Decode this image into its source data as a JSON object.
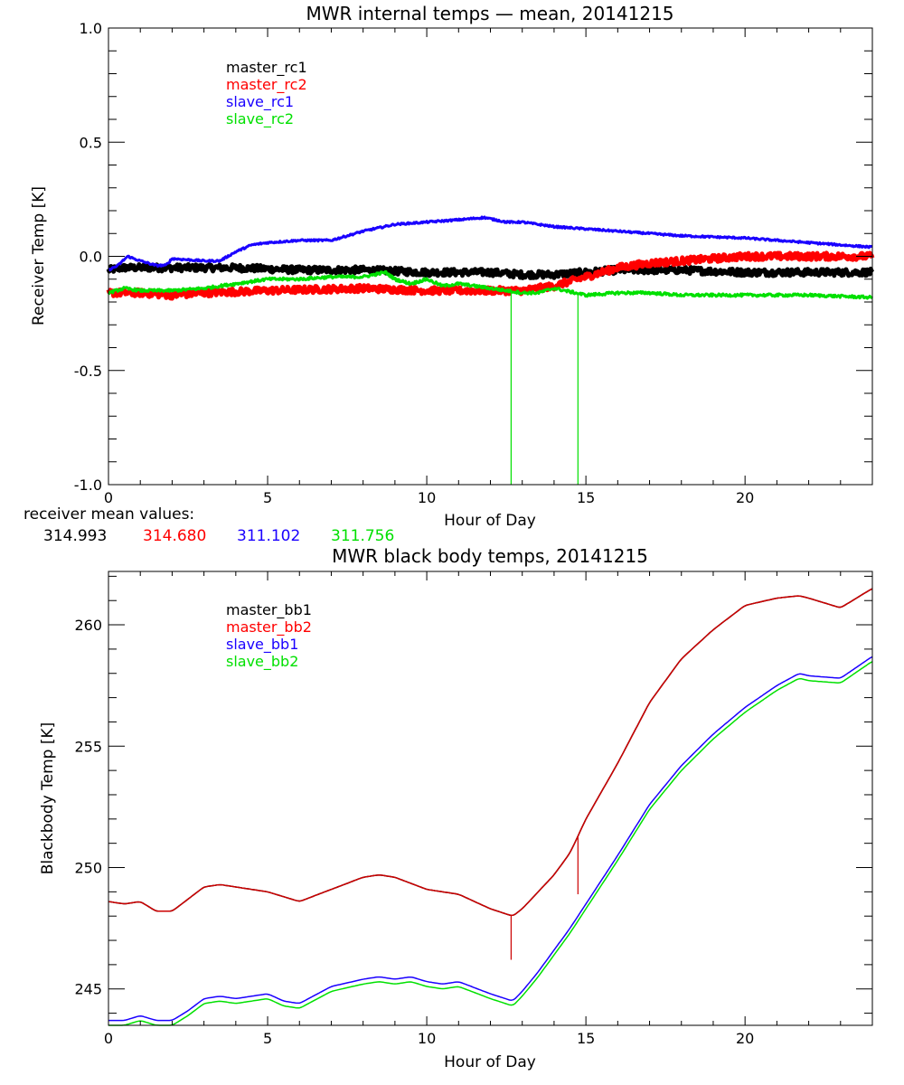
{
  "colors": {
    "black": "#000000",
    "red": "#ff0000",
    "blue": "#1a00ff",
    "green": "#00e000",
    "darkred": "#cc0000"
  },
  "chart_data": [
    {
      "type": "line",
      "title": "MWR internal temps — mean, 20141215",
      "xlabel": "Hour of Day",
      "ylabel": "Receiver Temp [K]",
      "xlim": [
        0,
        24
      ],
      "ylim": [
        -1.0,
        1.0
      ],
      "xticks": [
        0,
        5,
        10,
        15,
        20
      ],
      "xtick_labels": [
        "0",
        "5",
        "10",
        "15",
        "20"
      ],
      "yticks": [
        -1.0,
        -0.5,
        0.0,
        0.5,
        1.0
      ],
      "ytick_labels": [
        "-1.0",
        "-0.5",
        "0.0",
        "0.5",
        "1.0"
      ],
      "legend": [
        "master_rc1",
        "master_rc2",
        "slave_rc1",
        "slave_rc2"
      ],
      "legend_colors": [
        "black",
        "red",
        "blue",
        "green"
      ],
      "series": [
        {
          "name": "master_rc1",
          "color": "black",
          "noise": 0.015,
          "x": [
            0,
            0.5,
            2,
            4,
            6,
            8,
            10,
            12,
            13,
            14,
            15,
            16,
            18,
            20,
            22,
            24
          ],
          "y": [
            -0.06,
            -0.05,
            -0.05,
            -0.05,
            -0.06,
            -0.06,
            -0.07,
            -0.07,
            -0.08,
            -0.08,
            -0.07,
            -0.06,
            -0.06,
            -0.07,
            -0.07,
            -0.07
          ]
        },
        {
          "name": "master_rc2",
          "color": "red",
          "noise": 0.015,
          "x": [
            0,
            1,
            2,
            3,
            5,
            8,
            10,
            12,
            13,
            14,
            15,
            16,
            17,
            18,
            20,
            22,
            24
          ],
          "y": [
            -0.16,
            -0.16,
            -0.17,
            -0.16,
            -0.15,
            -0.14,
            -0.15,
            -0.15,
            -0.15,
            -0.13,
            -0.09,
            -0.05,
            -0.03,
            -0.02,
            0.0,
            0.0,
            0.0
          ]
        },
        {
          "name": "slave_rc1",
          "color": "blue",
          "noise": 0.004,
          "x": [
            0,
            0.3,
            0.6,
            1,
            1.5,
            1.8,
            2,
            3,
            3.5,
            4,
            4.5,
            5,
            6,
            7,
            7.5,
            8,
            9,
            10,
            11,
            11.8,
            12.5,
            13,
            14,
            15,
            16,
            17,
            18,
            20,
            22,
            24
          ],
          "y": [
            -0.06,
            -0.04,
            0.0,
            -0.02,
            -0.04,
            -0.04,
            -0.01,
            -0.02,
            -0.02,
            0.02,
            0.05,
            0.06,
            0.07,
            0.07,
            0.09,
            0.11,
            0.14,
            0.15,
            0.16,
            0.17,
            0.15,
            0.15,
            0.13,
            0.12,
            0.11,
            0.1,
            0.09,
            0.08,
            0.06,
            0.04
          ],
          "spikes": [
            {
              "x": 12.7,
              "to": 0.14
            },
            {
              "x": 14.8,
              "to": 0.12
            }
          ]
        },
        {
          "name": "slave_rc2",
          "color": "green",
          "noise": 0.006,
          "x": [
            0,
            0.5,
            1,
            2,
            3,
            4,
            5,
            6,
            7,
            8,
            8.7,
            9,
            9.5,
            10,
            10.5,
            11,
            12,
            12.5,
            13,
            13.5,
            14,
            15,
            16,
            17,
            18,
            20,
            22,
            24
          ],
          "y": [
            -0.16,
            -0.14,
            -0.15,
            -0.15,
            -0.14,
            -0.12,
            -0.1,
            -0.1,
            -0.09,
            -0.09,
            -0.07,
            -0.1,
            -0.12,
            -0.1,
            -0.13,
            -0.12,
            -0.14,
            -0.15,
            -0.16,
            -0.16,
            -0.14,
            -0.17,
            -0.16,
            -0.16,
            -0.17,
            -0.17,
            -0.17,
            -0.18
          ],
          "spikes": [
            {
              "x": 12.65,
              "to": -1.0
            },
            {
              "x": 14.75,
              "to": -1.0
            }
          ]
        }
      ]
    },
    {
      "type": "line",
      "title": "MWR black body temps, 20141215",
      "xlabel": "Hour of Day",
      "ylabel": "Blackbody Temp [K]",
      "xlim": [
        0,
        24
      ],
      "ylim": [
        243.5,
        262.2
      ],
      "xticks": [
        0,
        5,
        10,
        15,
        20
      ],
      "xtick_labels": [
        "0",
        "5",
        "10",
        "15",
        "20"
      ],
      "yticks": [
        245,
        250,
        255,
        260
      ],
      "ytick_labels": [
        "245",
        "250",
        "255",
        "260"
      ],
      "legend": [
        "master_bb1",
        "master_bb2",
        "slave_bb1",
        "slave_bb2"
      ],
      "legend_colors": [
        "black",
        "red",
        "blue",
        "green"
      ],
      "series": [
        {
          "name": "master_bb1",
          "color": "black",
          "x": [
            0,
            0.5,
            1,
            1.5,
            2,
            2.5,
            3,
            3.5,
            4,
            5,
            5.5,
            6,
            7,
            8,
            8.5,
            9,
            10,
            11,
            12,
            12.7,
            13,
            13.5,
            14,
            14.5,
            15,
            16,
            17,
            18,
            19,
            20,
            21,
            21.7,
            22,
            23,
            24
          ],
          "y": [
            248.6,
            248.5,
            248.6,
            248.2,
            248.2,
            248.7,
            249.2,
            249.3,
            249.2,
            249.0,
            248.8,
            248.6,
            249.1,
            249.6,
            249.7,
            249.6,
            249.1,
            248.9,
            248.3,
            248.0,
            248.3,
            249.0,
            249.7,
            250.6,
            252.0,
            254.3,
            256.8,
            258.6,
            259.8,
            260.8,
            261.1,
            261.2,
            261.1,
            260.7,
            261.5
          ]
        },
        {
          "name": "master_bb2",
          "color": "darkred",
          "x": [
            0,
            0.5,
            1,
            1.5,
            2,
            2.5,
            3,
            3.5,
            4,
            5,
            5.5,
            6,
            7,
            8,
            8.5,
            9,
            10,
            11,
            12,
            12.7,
            13,
            13.5,
            14,
            14.5,
            15,
            16,
            17,
            18,
            19,
            20,
            21,
            21.7,
            22,
            23,
            24
          ],
          "y": [
            248.6,
            248.5,
            248.6,
            248.2,
            248.2,
            248.7,
            249.2,
            249.3,
            249.2,
            249.0,
            248.8,
            248.6,
            249.1,
            249.6,
            249.7,
            249.6,
            249.1,
            248.9,
            248.3,
            248.0,
            248.3,
            249.0,
            249.7,
            250.6,
            252.0,
            254.3,
            256.8,
            258.6,
            259.8,
            260.8,
            261.1,
            261.2,
            261.1,
            260.7,
            261.5
          ],
          "spikes": [
            {
              "x": 12.65,
              "to": 246.2
            },
            {
              "x": 14.75,
              "to": 248.9
            }
          ]
        },
        {
          "name": "slave_bb1",
          "color": "blue",
          "x": [
            0,
            0.5,
            1,
            1.5,
            2,
            2.5,
            3,
            3.5,
            4,
            5,
            5.5,
            6,
            7,
            8,
            8.5,
            9,
            9.5,
            10,
            10.5,
            11,
            12,
            12.7,
            13,
            13.5,
            14,
            14.5,
            15,
            16,
            17,
            18,
            19,
            20,
            21,
            21.7,
            22,
            23,
            24
          ],
          "y": [
            243.7,
            243.7,
            243.9,
            243.7,
            243.7,
            244.1,
            244.6,
            244.7,
            244.6,
            244.8,
            244.5,
            244.4,
            245.1,
            245.4,
            245.5,
            245.4,
            245.5,
            245.3,
            245.2,
            245.3,
            244.8,
            244.5,
            244.9,
            245.7,
            246.6,
            247.5,
            248.5,
            250.5,
            252.6,
            254.2,
            255.5,
            256.6,
            257.5,
            258.0,
            257.9,
            257.8,
            258.7
          ]
        },
        {
          "name": "slave_bb2",
          "color": "green",
          "x": [
            0,
            0.5,
            1,
            1.5,
            2,
            2.5,
            3,
            3.5,
            4,
            5,
            5.5,
            6,
            7,
            8,
            8.5,
            9,
            9.5,
            10,
            10.5,
            11,
            12,
            12.7,
            13,
            13.5,
            14,
            14.5,
            15,
            16,
            17,
            18,
            19,
            20,
            21,
            21.7,
            22,
            23,
            24
          ],
          "y": [
            243.5,
            243.5,
            243.7,
            243.5,
            243.5,
            243.9,
            244.4,
            244.5,
            244.4,
            244.6,
            244.3,
            244.2,
            244.9,
            245.2,
            245.3,
            245.2,
            245.3,
            245.1,
            245.0,
            245.1,
            244.6,
            244.3,
            244.7,
            245.5,
            246.4,
            247.3,
            248.3,
            250.3,
            252.4,
            254.0,
            255.3,
            256.4,
            257.3,
            257.8,
            257.7,
            257.6,
            258.5
          ]
        }
      ]
    }
  ],
  "mean_values": {
    "label": "receiver mean values:",
    "values": [
      {
        "text": "314.993",
        "color": "black"
      },
      {
        "text": "314.680",
        "color": "red"
      },
      {
        "text": "311.102",
        "color": "blue"
      },
      {
        "text": "311.756",
        "color": "green"
      }
    ]
  }
}
